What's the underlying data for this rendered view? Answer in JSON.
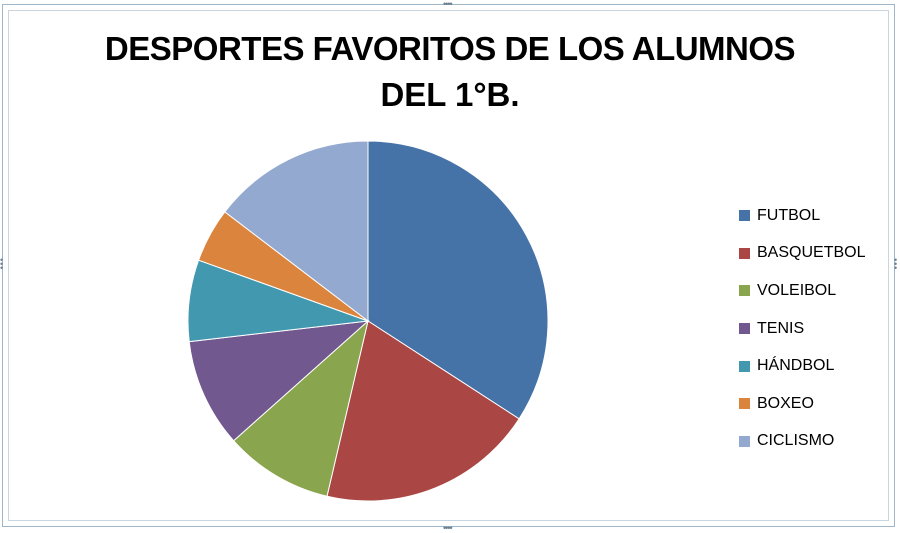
{
  "chart_data": {
    "type": "pie",
    "title_line1": "DESPORTES FAVORITOS DE LOS ALUMNOS",
    "title_line2": "DEL 1°B.",
    "series": [
      {
        "name": "FUTBOL",
        "value": 35,
        "color": "#4572A7"
      },
      {
        "name": "BASQUETBOL",
        "value": 20,
        "color": "#AA4643"
      },
      {
        "name": "VOLEIBOL",
        "value": 10,
        "color": "#89A54E"
      },
      {
        "name": "TENIS",
        "value": 10,
        "color": "#71588F"
      },
      {
        "name": "HÁNDBOL",
        "value": 7.5,
        "color": "#4198AF"
      },
      {
        "name": "BOXEO",
        "value": 5,
        "color": "#DB843D"
      },
      {
        "name": "CICLISMO",
        "value": 15,
        "color": "#93A9CF"
      }
    ],
    "legend_position": "right"
  }
}
